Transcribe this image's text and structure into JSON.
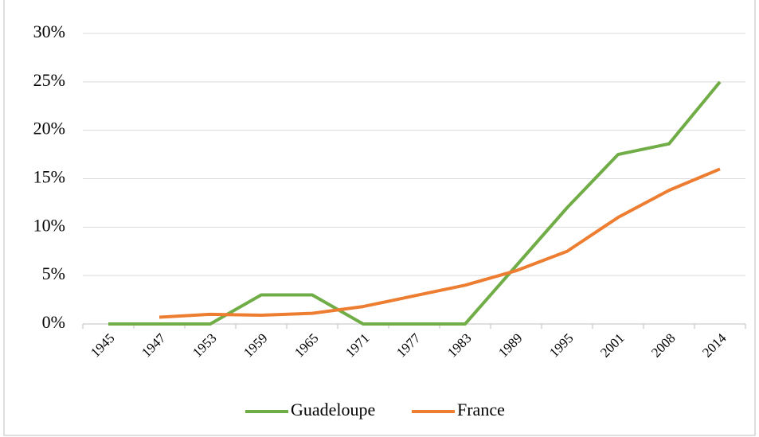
{
  "chart_data": {
    "type": "line",
    "categories": [
      "1945",
      "1947",
      "1953",
      "1959",
      "1965",
      "1971",
      "1977",
      "1983",
      "1989",
      "1995",
      "2001",
      "2008",
      "2014"
    ],
    "series": [
      {
        "name": "Guadeloupe",
        "color": "#70ad47",
        "values": [
          0,
          0,
          0,
          3,
          3,
          0,
          0,
          0,
          6,
          12,
          17.5,
          18.6,
          25
        ]
      },
      {
        "name": "France",
        "color": "#ed7d31",
        "values": [
          null,
          0.7,
          1,
          0.9,
          1.1,
          1.8,
          2.9,
          4,
          5.5,
          7.5,
          11,
          13.8,
          16
        ]
      }
    ],
    "ylim": [
      0,
      30
    ],
    "yticks": [
      {
        "value": 0,
        "label": "0%"
      },
      {
        "value": 5,
        "label": "5%"
      },
      {
        "value": 10,
        "label": "10%"
      },
      {
        "value": 15,
        "label": "15%"
      },
      {
        "value": 20,
        "label": "20%"
      },
      {
        "value": 25,
        "label": "25%"
      },
      {
        "value": 30,
        "label": "30%"
      }
    ],
    "grid": true,
    "legend": "bottom"
  }
}
